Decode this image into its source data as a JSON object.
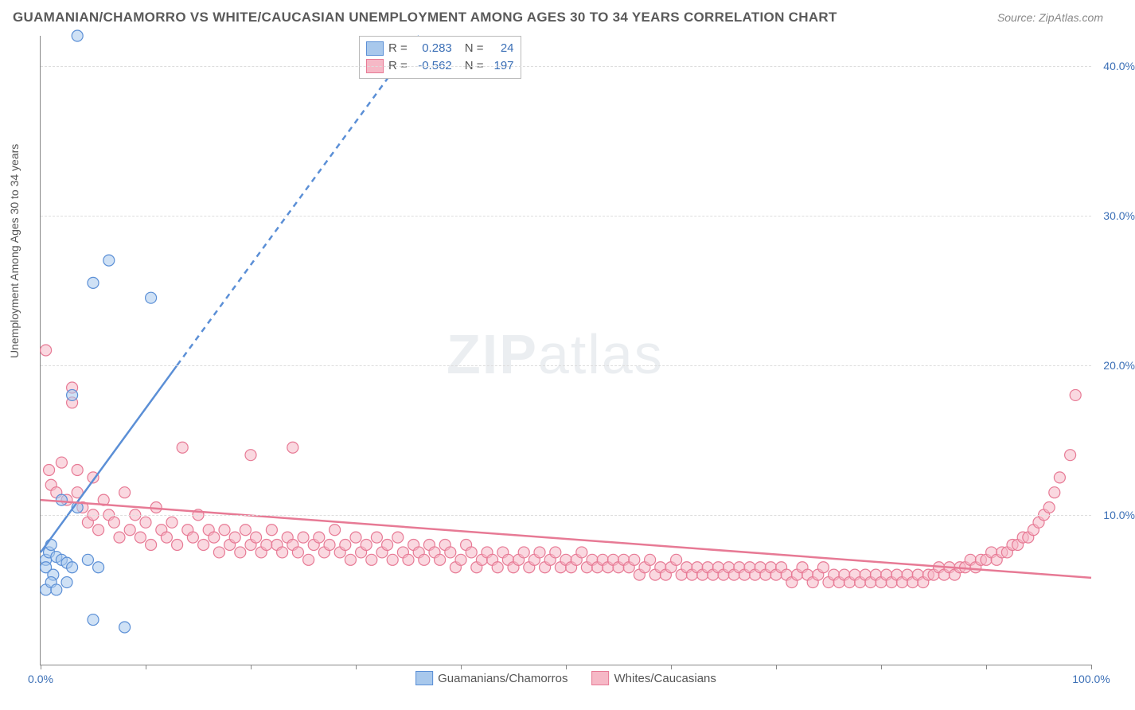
{
  "title": "GUAMANIAN/CHAMORRO VS WHITE/CAUCASIAN UNEMPLOYMENT AMONG AGES 30 TO 34 YEARS CORRELATION CHART",
  "source": "Source: ZipAtlas.com",
  "ylabel": "Unemployment Among Ages 30 to 34 years",
  "watermark_zip": "ZIP",
  "watermark_atlas": "atlas",
  "chart": {
    "type": "scatter",
    "background_color": "#ffffff",
    "grid_color": "#dddddd",
    "axis_color": "#888888",
    "tick_label_color": "#3b6fb6",
    "xlim": [
      0,
      100
    ],
    "ylim": [
      0,
      42
    ],
    "xticks": [
      0,
      10,
      20,
      30,
      40,
      50,
      60,
      70,
      80,
      90,
      100
    ],
    "xtick_labels": {
      "0": "0.0%",
      "100": "100.0%"
    },
    "yticks": [
      10,
      20,
      30,
      40
    ],
    "ytick_labels": {
      "10": "10.0%",
      "20": "20.0%",
      "30": "30.0%",
      "40": "40.0%"
    },
    "marker_radius": 7,
    "marker_stroke_width": 1.2,
    "line_width": 2.5,
    "series": [
      {
        "name": "Guamanians/Chamorros",
        "label": "Guamanians/Chamorros",
        "fill_color": "#a8c8ec",
        "stroke_color": "#5b8fd6",
        "fill_opacity": 0.55,
        "R": "0.283",
        "N": "24",
        "trend_solid": {
          "x1": 0,
          "y1": 7.5,
          "x2": 13,
          "y2": 20
        },
        "trend_dash": {
          "x1": 13,
          "y1": 20,
          "x2": 36,
          "y2": 42
        },
        "points": [
          [
            0.5,
            7.0
          ],
          [
            0.5,
            6.5
          ],
          [
            0.8,
            7.5
          ],
          [
            1.0,
            8.0
          ],
          [
            1.2,
            6.0
          ],
          [
            1.5,
            7.2
          ],
          [
            0.5,
            5.0
          ],
          [
            1.0,
            5.5
          ],
          [
            2.0,
            7.0
          ],
          [
            2.5,
            6.8
          ],
          [
            3.0,
            6.5
          ],
          [
            4.5,
            7.0
          ],
          [
            5.5,
            6.5
          ],
          [
            1.5,
            5.0
          ],
          [
            2.5,
            5.5
          ],
          [
            5.0,
            3.0
          ],
          [
            8.0,
            2.5
          ],
          [
            3.0,
            18.0
          ],
          [
            5.0,
            25.5
          ],
          [
            6.5,
            27.0
          ],
          [
            10.5,
            24.5
          ],
          [
            3.5,
            42.0
          ],
          [
            2.0,
            11.0
          ],
          [
            3.5,
            10.5
          ]
        ]
      },
      {
        "name": "Whites/Caucasians",
        "label": "Whites/Caucasians",
        "fill_color": "#f6b8c6",
        "stroke_color": "#e77a95",
        "fill_opacity": 0.55,
        "R": "-0.562",
        "N": "197",
        "trend_solid": {
          "x1": 0,
          "y1": 11.0,
          "x2": 100,
          "y2": 5.8
        },
        "trend_dash": null,
        "points": [
          [
            0.5,
            21.0
          ],
          [
            0.8,
            13.0
          ],
          [
            1.0,
            12.0
          ],
          [
            1.5,
            11.5
          ],
          [
            2.0,
            13.5
          ],
          [
            2.5,
            11.0
          ],
          [
            3.0,
            18.5
          ],
          [
            3.0,
            17.5
          ],
          [
            3.5,
            13.0
          ],
          [
            3.5,
            11.5
          ],
          [
            4.0,
            10.5
          ],
          [
            4.5,
            9.5
          ],
          [
            5.0,
            12.5
          ],
          [
            5.0,
            10.0
          ],
          [
            5.5,
            9.0
          ],
          [
            6.0,
            11.0
          ],
          [
            6.5,
            10.0
          ],
          [
            7.0,
            9.5
          ],
          [
            7.5,
            8.5
          ],
          [
            8.0,
            11.5
          ],
          [
            8.5,
            9.0
          ],
          [
            9.0,
            10.0
          ],
          [
            9.5,
            8.5
          ],
          [
            10.0,
            9.5
          ],
          [
            10.5,
            8.0
          ],
          [
            11.0,
            10.5
          ],
          [
            11.5,
            9.0
          ],
          [
            12.0,
            8.5
          ],
          [
            12.5,
            9.5
          ],
          [
            13.0,
            8.0
          ],
          [
            13.5,
            14.5
          ],
          [
            14.0,
            9.0
          ],
          [
            14.5,
            8.5
          ],
          [
            15.0,
            10.0
          ],
          [
            15.5,
            8.0
          ],
          [
            16.0,
            9.0
          ],
          [
            16.5,
            8.5
          ],
          [
            17.0,
            7.5
          ],
          [
            17.5,
            9.0
          ],
          [
            18.0,
            8.0
          ],
          [
            18.5,
            8.5
          ],
          [
            19.0,
            7.5
          ],
          [
            19.5,
            9.0
          ],
          [
            20.0,
            8.0
          ],
          [
            20.0,
            14.0
          ],
          [
            20.5,
            8.5
          ],
          [
            21.0,
            7.5
          ],
          [
            21.5,
            8.0
          ],
          [
            22.0,
            9.0
          ],
          [
            22.5,
            8.0
          ],
          [
            23.0,
            7.5
          ],
          [
            23.5,
            8.5
          ],
          [
            24.0,
            14.5
          ],
          [
            24.0,
            8.0
          ],
          [
            24.5,
            7.5
          ],
          [
            25.0,
            8.5
          ],
          [
            25.5,
            7.0
          ],
          [
            26.0,
            8.0
          ],
          [
            26.5,
            8.5
          ],
          [
            27.0,
            7.5
          ],
          [
            27.5,
            8.0
          ],
          [
            28.0,
            9.0
          ],
          [
            28.5,
            7.5
          ],
          [
            29.0,
            8.0
          ],
          [
            29.5,
            7.0
          ],
          [
            30.0,
            8.5
          ],
          [
            30.5,
            7.5
          ],
          [
            31.0,
            8.0
          ],
          [
            31.5,
            7.0
          ],
          [
            32.0,
            8.5
          ],
          [
            32.5,
            7.5
          ],
          [
            33.0,
            8.0
          ],
          [
            33.5,
            7.0
          ],
          [
            34.0,
            8.5
          ],
          [
            34.5,
            7.5
          ],
          [
            35.0,
            7.0
          ],
          [
            35.5,
            8.0
          ],
          [
            36.0,
            7.5
          ],
          [
            36.5,
            7.0
          ],
          [
            37.0,
            8.0
          ],
          [
            37.5,
            7.5
          ],
          [
            38.0,
            7.0
          ],
          [
            38.5,
            8.0
          ],
          [
            39.0,
            7.5
          ],
          [
            39.5,
            6.5
          ],
          [
            40.0,
            7.0
          ],
          [
            40.5,
            8.0
          ],
          [
            41.0,
            7.5
          ],
          [
            41.5,
            6.5
          ],
          [
            42.0,
            7.0
          ],
          [
            42.5,
            7.5
          ],
          [
            43.0,
            7.0
          ],
          [
            43.5,
            6.5
          ],
          [
            44.0,
            7.5
          ],
          [
            44.5,
            7.0
          ],
          [
            45.0,
            6.5
          ],
          [
            45.5,
            7.0
          ],
          [
            46.0,
            7.5
          ],
          [
            46.5,
            6.5
          ],
          [
            47.0,
            7.0
          ],
          [
            47.5,
            7.5
          ],
          [
            48.0,
            6.5
          ],
          [
            48.5,
            7.0
          ],
          [
            49.0,
            7.5
          ],
          [
            49.5,
            6.5
          ],
          [
            50.0,
            7.0
          ],
          [
            50.5,
            6.5
          ],
          [
            51.0,
            7.0
          ],
          [
            51.5,
            7.5
          ],
          [
            52.0,
            6.5
          ],
          [
            52.5,
            7.0
          ],
          [
            53.0,
            6.5
          ],
          [
            53.5,
            7.0
          ],
          [
            54.0,
            6.5
          ],
          [
            54.5,
            7.0
          ],
          [
            55.0,
            6.5
          ],
          [
            55.5,
            7.0
          ],
          [
            56.0,
            6.5
          ],
          [
            56.5,
            7.0
          ],
          [
            57.0,
            6.0
          ],
          [
            57.5,
            6.5
          ],
          [
            58.0,
            7.0
          ],
          [
            58.5,
            6.0
          ],
          [
            59.0,
            6.5
          ],
          [
            59.5,
            6.0
          ],
          [
            60.0,
            6.5
          ],
          [
            60.5,
            7.0
          ],
          [
            61.0,
            6.0
          ],
          [
            61.5,
            6.5
          ],
          [
            62.0,
            6.0
          ],
          [
            62.5,
            6.5
          ],
          [
            63.0,
            6.0
          ],
          [
            63.5,
            6.5
          ],
          [
            64.0,
            6.0
          ],
          [
            64.5,
            6.5
          ],
          [
            65.0,
            6.0
          ],
          [
            65.5,
            6.5
          ],
          [
            66.0,
            6.0
          ],
          [
            66.5,
            6.5
          ],
          [
            67.0,
            6.0
          ],
          [
            67.5,
            6.5
          ],
          [
            68.0,
            6.0
          ],
          [
            68.5,
            6.5
          ],
          [
            69.0,
            6.0
          ],
          [
            69.5,
            6.5
          ],
          [
            70.0,
            6.0
          ],
          [
            70.5,
            6.5
          ],
          [
            71.0,
            6.0
          ],
          [
            71.5,
            5.5
          ],
          [
            72.0,
            6.0
          ],
          [
            72.5,
            6.5
          ],
          [
            73.0,
            6.0
          ],
          [
            73.5,
            5.5
          ],
          [
            74.0,
            6.0
          ],
          [
            74.5,
            6.5
          ],
          [
            75.0,
            5.5
          ],
          [
            75.5,
            6.0
          ],
          [
            76.0,
            5.5
          ],
          [
            76.5,
            6.0
          ],
          [
            77.0,
            5.5
          ],
          [
            77.5,
            6.0
          ],
          [
            78.0,
            5.5
          ],
          [
            78.5,
            6.0
          ],
          [
            79.0,
            5.5
          ],
          [
            79.5,
            6.0
          ],
          [
            80.0,
            5.5
          ],
          [
            80.5,
            6.0
          ],
          [
            81.0,
            5.5
          ],
          [
            81.5,
            6.0
          ],
          [
            82.0,
            5.5
          ],
          [
            82.5,
            6.0
          ],
          [
            83.0,
            5.5
          ],
          [
            83.5,
            6.0
          ],
          [
            84.0,
            5.5
          ],
          [
            84.5,
            6.0
          ],
          [
            85.0,
            6.0
          ],
          [
            85.5,
            6.5
          ],
          [
            86.0,
            6.0
          ],
          [
            86.5,
            6.5
          ],
          [
            87.0,
            6.0
          ],
          [
            87.5,
            6.5
          ],
          [
            88.0,
            6.5
          ],
          [
            88.5,
            7.0
          ],
          [
            89.0,
            6.5
          ],
          [
            89.5,
            7.0
          ],
          [
            90.0,
            7.0
          ],
          [
            90.5,
            7.5
          ],
          [
            91.0,
            7.0
          ],
          [
            91.5,
            7.5
          ],
          [
            92.0,
            7.5
          ],
          [
            92.5,
            8.0
          ],
          [
            93.0,
            8.0
          ],
          [
            93.5,
            8.5
          ],
          [
            94.0,
            8.5
          ],
          [
            94.5,
            9.0
          ],
          [
            95.0,
            9.5
          ],
          [
            95.5,
            10.0
          ],
          [
            96.0,
            10.5
          ],
          [
            96.5,
            11.5
          ],
          [
            97.0,
            12.5
          ],
          [
            98.0,
            14.0
          ],
          [
            98.5,
            18.0
          ]
        ]
      }
    ],
    "legend_top": {
      "r_label": "R =",
      "n_label": "N ="
    },
    "bottom_legend_labels": [
      "Guamanians/Chamorros",
      "Whites/Caucasians"
    ]
  }
}
